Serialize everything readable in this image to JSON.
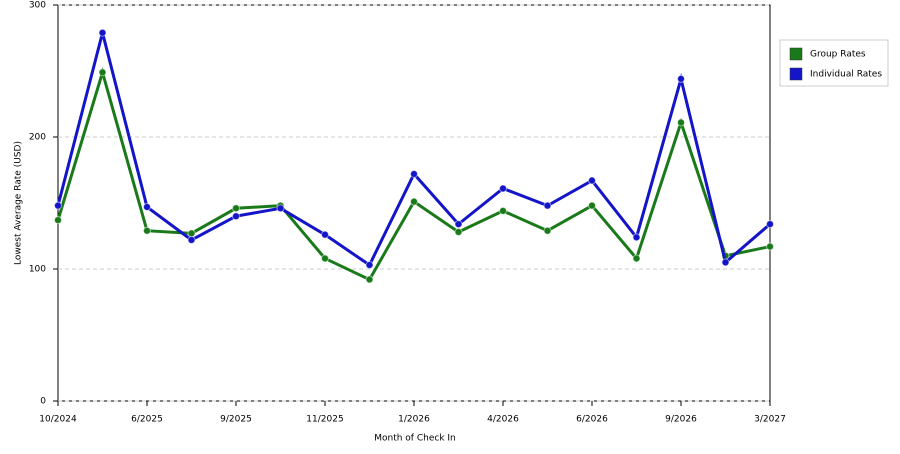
{
  "chart_data": {
    "type": "line",
    "x_label": "Month of Check In",
    "y_label": "Lowest Average Rate (USD)",
    "categories": [
      "10/2024",
      null,
      "6/2025",
      null,
      "9/2025",
      null,
      "11/2025",
      null,
      "1/2026",
      null,
      "4/2026",
      null,
      "6/2026",
      null,
      "9/2026",
      null,
      "3/2027"
    ],
    "series": [
      {
        "name": "Group Rates",
        "color": "#1a7a1a",
        "values": [
          137,
          249,
          129,
          127,
          146,
          148,
          108,
          92,
          151,
          128,
          144,
          129,
          148,
          108,
          211,
          110,
          117
        ]
      },
      {
        "name": "Individual Rates",
        "color": "#1414c8",
        "values": [
          148,
          279,
          147,
          122,
          140,
          146,
          126,
          103,
          172,
          134,
          161,
          148,
          167,
          124,
          244,
          105,
          134
        ]
      }
    ],
    "ylim": [
      0,
      300
    ],
    "yticks": [
      0,
      100,
      200,
      300
    ],
    "grid": true,
    "legend": "right"
  }
}
